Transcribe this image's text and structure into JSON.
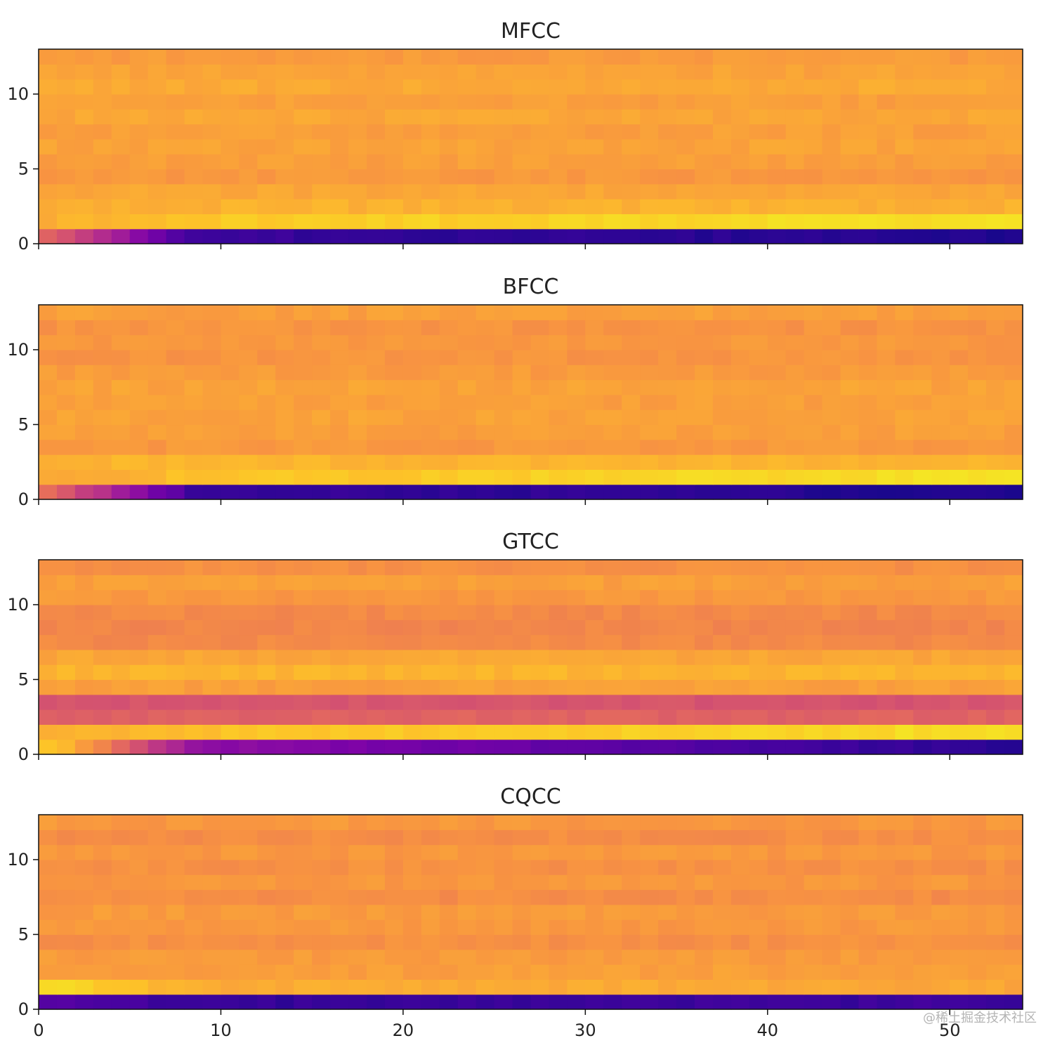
{
  "watermark": "@稀土掘金技术社区",
  "colormap": "plasma",
  "chart_data": [
    {
      "type": "heatmap",
      "title": "MFCC",
      "xlabel": "",
      "ylabel": "",
      "x_frames": 54,
      "y_coeffs": 13,
      "xlim": [
        0,
        54
      ],
      "ylim": [
        0,
        13
      ],
      "yticks": [
        "0",
        "5",
        "10"
      ],
      "xticks": [],
      "normalized_profile": {
        "row0": {
          "start": 0.62,
          "mid": 0.1,
          "end": 0.04
        },
        "row1": {
          "start": 0.82,
          "mid": 0.88,
          "end": 0.95
        },
        "row2": 0.83,
        "row3": 0.8,
        "row4": 0.76,
        "row5": 0.78,
        "row6": 0.79,
        "row7": 0.78,
        "row8": 0.8,
        "row9": 0.78,
        "row10": 0.81,
        "row11": 0.79,
        "row12": 0.77
      }
    },
    {
      "type": "heatmap",
      "title": "BFCC",
      "xlabel": "",
      "ylabel": "",
      "x_frames": 54,
      "y_coeffs": 13,
      "xlim": [
        0,
        54
      ],
      "ylim": [
        0,
        13
      ],
      "yticks": [
        "0",
        "5",
        "10"
      ],
      "xticks": [],
      "normalized_profile": {
        "row0": {
          "start": 0.62,
          "mid": 0.1,
          "end": 0.04
        },
        "row1": {
          "start": 0.8,
          "mid": 0.86,
          "end": 0.95
        },
        "row2": 0.84,
        "row3": 0.76,
        "row4": 0.78,
        "row5": 0.79,
        "row6": 0.78,
        "row7": 0.79,
        "row8": 0.77,
        "row9": 0.75,
        "row10": 0.76,
        "row11": 0.75,
        "row12": 0.78
      }
    },
    {
      "type": "heatmap",
      "title": "GTCC",
      "xlabel": "",
      "ylabel": "",
      "x_frames": 54,
      "y_coeffs": 13,
      "xlim": [
        0,
        54
      ],
      "ylim": [
        0,
        13
      ],
      "yticks": [
        "0",
        "5",
        "10"
      ],
      "xticks": [],
      "normalized_profile": {
        "row0": {
          "start": 0.9,
          "mid": 0.35,
          "end": 0.05
        },
        "row1": {
          "start": 0.82,
          "mid": 0.86,
          "end": 0.94
        },
        "row2": 0.6,
        "row3": 0.55,
        "row4": 0.78,
        "row5": 0.84,
        "row6": 0.8,
        "row7": 0.72,
        "row8": 0.71,
        "row9": 0.72,
        "row10": 0.76,
        "row11": 0.78,
        "row12": 0.74
      }
    },
    {
      "type": "heatmap",
      "title": "CQCC",
      "xlabel": "",
      "ylabel": "",
      "x_frames": 54,
      "y_coeffs": 13,
      "xlim": [
        0,
        54
      ],
      "ylim": [
        0,
        13
      ],
      "yticks": [
        "0",
        "5",
        "10"
      ],
      "xticks": [
        "0",
        "10",
        "20",
        "30",
        "40",
        "50"
      ],
      "normalized_profile": {
        "row0": {
          "start": 0.15,
          "mid": 0.08,
          "end": 0.1
        },
        "row1": {
          "start": 0.93,
          "mid": 0.82,
          "end": 0.8
        },
        "row2": 0.78,
        "row3": 0.77,
        "row4": 0.74,
        "row5": 0.76,
        "row6": 0.77,
        "row7": 0.73,
        "row8": 0.76,
        "row9": 0.74,
        "row10": 0.76,
        "row11": 0.73,
        "row12": 0.76
      }
    }
  ]
}
